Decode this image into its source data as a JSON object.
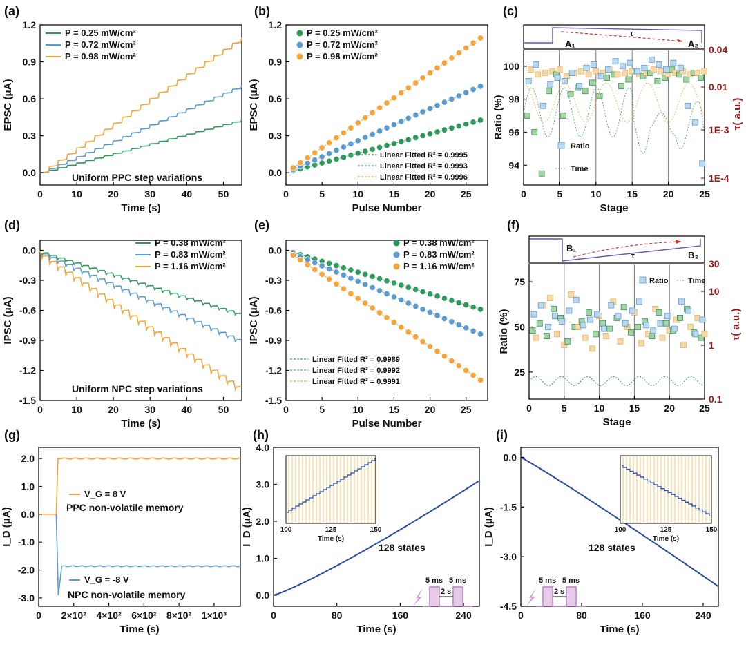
{
  "colors": {
    "green": "#2e9a5a",
    "blue": "#5b9bd0",
    "orange": "#f3a53a",
    "navy": "#2a4aa8",
    "darkred": "#9a1a1a",
    "purple": "#b07ac0",
    "pulse": "#d49ad8"
  },
  "panels": {
    "a": {
      "label": "(a)",
      "xlabel": "Time (s)",
      "ylabel": "EPSC (μA)",
      "annotation": "Uniform PPC step variations",
      "xticks": [
        "0",
        "10",
        "20",
        "30",
        "40",
        "50"
      ],
      "yticks": [
        "0.0",
        "0.3",
        "0.6",
        "0.9",
        "1.2"
      ],
      "legend": [
        "P = 0.25 mW/cm²",
        "P = 0.72 mW/cm²",
        "P = 0.98 mW/cm²"
      ]
    },
    "b": {
      "label": "(b)",
      "xlabel": "Pulse Number",
      "ylabel": "EPSC (μA)",
      "xticks": [
        "0",
        "5",
        "10",
        "15",
        "20",
        "25"
      ],
      "yticks": [
        "0.0",
        "0.3",
        "0.6",
        "0.9",
        "1.2"
      ],
      "legend": [
        "P = 0.25 mW/cm²",
        "P = 0.72 mW/cm²",
        "P = 0.98 mW/cm²"
      ],
      "fits": [
        "Linear Fitted R² = 0.9995",
        "Linear Fitted R² = 0.9993",
        "Linear Fitted R² = 0.9996"
      ]
    },
    "c": {
      "label": "(c)",
      "xlabel": "Stage",
      "ylabel": "Ratio (%)",
      "ylabel_right": "τ( a.u.)",
      "xticks": [
        "0",
        "5",
        "10",
        "15",
        "20",
        "25"
      ],
      "yticks": [
        "94",
        "96",
        "98",
        "100"
      ],
      "yticks_right": [
        "0.04",
        "0.01",
        "1E-3",
        "1E-4"
      ],
      "legend": [
        "Ratio",
        "Time"
      ],
      "schematic": {
        "a1": "A₁",
        "a2": "A₂",
        "tau": "τ"
      }
    },
    "d": {
      "label": "(d)",
      "xlabel": "Time (s)",
      "ylabel": "IPSC (μA)",
      "annotation": "Uniform NPC step variations",
      "xticks": [
        "0",
        "10",
        "20",
        "30",
        "40",
        "50"
      ],
      "yticks": [
        "0.0",
        "-0.3",
        "-0.6",
        "-0.9",
        "-1.2",
        "-1.5"
      ],
      "legend": [
        "P = 0.38 mW/cm²",
        "P = 0.83 mW/cm²",
        "P = 1.16 mW/cm²"
      ]
    },
    "e": {
      "label": "(e)",
      "xlabel": "Pulse Number",
      "ylabel": "IPSC (μA)",
      "xticks": [
        "0",
        "5",
        "10",
        "15",
        "20",
        "25"
      ],
      "yticks": [
        "0.0",
        "-0.3",
        "-0.6",
        "-0.9",
        "-1.2",
        "-1.5"
      ],
      "legend": [
        "P = 0.38 mW/cm²",
        "P = 0.83 mW/cm²",
        "P = 1.16 mW/cm²"
      ],
      "fits": [
        "Linear Fitted R² = 0.9989",
        "Linear Fitted R² = 0.9992",
        "Linear Fitted R² = 0.9991"
      ]
    },
    "f": {
      "label": "(f)",
      "xlabel": "Stage",
      "ylabel": "Ratio (%)",
      "ylabel_right": "τ( a.u.)",
      "xticks": [
        "0",
        "5",
        "10",
        "15",
        "20",
        "25"
      ],
      "yticks": [
        "25",
        "50",
        "75"
      ],
      "yticks_right": [
        "30",
        "10",
        "1",
        "0.1"
      ],
      "legend": [
        "Ratio",
        "Time"
      ],
      "schematic": {
        "b1": "B₁",
        "b2": "B₂",
        "tau": "τ"
      }
    },
    "g": {
      "label": "(g)",
      "xlabel": "Time (s)",
      "ylabel": "I_D (μA)",
      "xticks": [
        "0",
        "2×10²",
        "4×10²",
        "6×10²",
        "8×10²",
        "1×10³"
      ],
      "yticks": [
        "2.0",
        "1.0",
        "0.0",
        "-1.0",
        "-2.0",
        "-3.0"
      ],
      "vg_pos": "V_G = 8 V",
      "ppc": "PPC non-volatile memory",
      "vg_neg": "V_G = -8 V",
      "npc": "NPC non-volatile memory"
    },
    "h": {
      "label": "(h)",
      "xlabel": "Time (s)",
      "ylabel": "I_D (μA)",
      "xticks": [
        "0",
        "80",
        "160",
        "240"
      ],
      "yticks": [
        "0.0",
        "1.0",
        "2.0",
        "3.0",
        "4.0"
      ],
      "states": "128 states",
      "inset_xlabel": "Time (s)",
      "inset_xticks": [
        "100",
        "125",
        "150"
      ],
      "pulse_width": "5 ms",
      "pulse_gap": "2 s"
    },
    "i": {
      "label": "(i)",
      "xlabel": "Time (s)",
      "ylabel": "I_D (μA)",
      "xticks": [
        "0",
        "80",
        "160",
        "240"
      ],
      "yticks": [
        "0.0",
        "-1.5",
        "-3.0",
        "-4.5"
      ],
      "states": "128 states",
      "inset_xlabel": "Time (s)",
      "inset_xticks": [
        "100",
        "125",
        "150"
      ],
      "pulse_width": "5 ms",
      "pulse_gap": "2 s"
    }
  },
  "chart_data": [
    {
      "panel": "a",
      "type": "line",
      "title": "",
      "xlabel": "Time (s)",
      "ylabel": "EPSC (μA)",
      "xlim": [
        0,
        55
      ],
      "ylim": [
        -0.1,
        1.2
      ],
      "series": [
        {
          "name": "P = 0.25 mW/cm²",
          "x": [
            0,
            55
          ],
          "y": [
            0,
            0.43
          ]
        },
        {
          "name": "P = 0.72 mW/cm²",
          "x": [
            0,
            55
          ],
          "y": [
            0,
            0.71
          ]
        },
        {
          "name": "P = 0.98 mW/cm²",
          "x": [
            0,
            55
          ],
          "y": [
            0,
            1.1
          ]
        }
      ]
    },
    {
      "panel": "b",
      "type": "scatter",
      "xlabel": "Pulse Number",
      "ylabel": "EPSC (μA)",
      "xlim": [
        0,
        28
      ],
      "ylim": [
        -0.1,
        1.2
      ],
      "series": [
        {
          "name": "P = 0.25 mW/cm²",
          "slope": 0.0158,
          "intercept": 0.0,
          "n": 27
        },
        {
          "name": "P = 0.72 mW/cm²",
          "slope": 0.026,
          "intercept": 0.0,
          "n": 27
        },
        {
          "name": "P = 0.98 mW/cm²",
          "slope": 0.0405,
          "intercept": 0.0,
          "n": 27
        }
      ]
    },
    {
      "panel": "d",
      "type": "line",
      "xlabel": "Time (s)",
      "ylabel": "IPSC (μA)",
      "xlim": [
        0,
        55
      ],
      "ylim": [
        -1.5,
        0.1
      ],
      "series": [
        {
          "name": "P = 0.38 mW/cm²",
          "x": [
            0,
            55
          ],
          "y": [
            0,
            -0.63
          ]
        },
        {
          "name": "P = 0.83 mW/cm²",
          "x": [
            0,
            55
          ],
          "y": [
            0,
            -0.89
          ]
        },
        {
          "name": "P = 1.16 mW/cm²",
          "x": [
            0,
            55
          ],
          "y": [
            0,
            -1.36
          ]
        }
      ]
    },
    {
      "panel": "e",
      "type": "scatter",
      "xlabel": "Pulse Number",
      "ylabel": "IPSC (μA)",
      "xlim": [
        0,
        28
      ],
      "ylim": [
        -1.5,
        0.1
      ],
      "series": [
        {
          "name": "P = 0.38 mW/cm²",
          "slope": -0.0218,
          "intercept": 0.0,
          "n": 27
        },
        {
          "name": "P = 0.83 mW/cm²",
          "slope": -0.031,
          "intercept": 0.0,
          "n": 27
        },
        {
          "name": "P = 1.16 mW/cm²",
          "slope": -0.048,
          "intercept": 0.0,
          "n": 27
        }
      ]
    },
    {
      "panel": "g",
      "type": "line",
      "xlabel": "Time (s)",
      "ylabel": "I_D (μA)",
      "xlim": [
        0,
        1150
      ],
      "ylim": [
        -3.3,
        2.4
      ],
      "series": [
        {
          "name": "V_G = 8 V",
          "x": [
            0,
            100,
            110,
            1150
          ],
          "y": [
            0,
            0,
            2.0,
            2.02
          ]
        },
        {
          "name": "V_G = -8 V",
          "x": [
            0,
            100,
            110,
            1150
          ],
          "y": [
            0,
            0,
            -2.9,
            -1.85
          ]
        }
      ]
    },
    {
      "panel": "h",
      "type": "line",
      "xlabel": "Time (s)",
      "ylabel": "I_D (μA)",
      "xlim": [
        0,
        260
      ],
      "ylim": [
        -0.3,
        4.0
      ],
      "series": [
        {
          "name": "I_D",
          "x": [
            0,
            260
          ],
          "y": [
            0,
            3.1
          ]
        }
      ]
    },
    {
      "panel": "i",
      "type": "line",
      "xlabel": "Time (s)",
      "ylabel": "I_D (μA)",
      "xlim": [
        0,
        260
      ],
      "ylim": [
        -4.5,
        0.3
      ],
      "series": [
        {
          "name": "I_D",
          "x": [
            0,
            260
          ],
          "y": [
            0,
            -3.9
          ]
        }
      ]
    }
  ]
}
